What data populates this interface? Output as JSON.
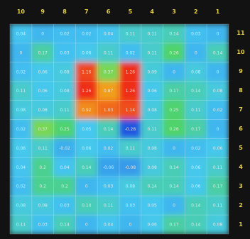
{
  "chart_data": {
    "type": "heatmap",
    "title": "",
    "xlabel": "",
    "ylabel": "",
    "x_labels": [
      "10",
      "9",
      "8",
      "7",
      "6",
      "5",
      "4",
      "3",
      "2",
      "1"
    ],
    "y_labels": [
      "11",
      "10",
      "9",
      "8",
      "7",
      "6",
      "5",
      "4",
      "3",
      "2",
      "1"
    ],
    "grid": true,
    "colormap": [
      "#1f4fe0",
      "#45c8f0",
      "#4fd36a",
      "#f2e21a",
      "#f08020",
      "#ee2218"
    ],
    "values": [
      [
        0.04,
        0,
        0.02,
        0.02,
        0.04,
        0.11,
        0.11,
        0.14,
        0.03,
        0
      ],
      [
        0,
        0.17,
        0.03,
        0.06,
        0.11,
        0.02,
        0.11,
        0.26,
        0,
        0.14
      ],
      [
        0.02,
        0.06,
        0.08,
        1.16,
        0.37,
        1.26,
        0.09,
        0,
        0.08,
        0
      ],
      [
        0.11,
        0.06,
        0.08,
        1.26,
        0.87,
        1.26,
        0.06,
        0.17,
        0.14,
        0.08
      ],
      [
        0.08,
        0.08,
        0.11,
        0.92,
        1.03,
        1.14,
        0.08,
        0.25,
        0.11,
        0.02
      ],
      [
        0.02,
        0.37,
        0.25,
        0.05,
        0.14,
        -0.28,
        0.11,
        0.26,
        0.17,
        0
      ],
      [
        0.06,
        0.11,
        -0.02,
        0.06,
        0.02,
        0.11,
        0.08,
        0,
        0.02,
        0.06
      ],
      [
        0.04,
        0.2,
        0.04,
        0.14,
        -0.06,
        -0.08,
        0.08,
        0.14,
        0.06,
        0.11
      ],
      [
        0.02,
        0.2,
        0.2,
        0,
        0.03,
        0.08,
        0.14,
        0.14,
        0.06,
        0.17
      ],
      [
        0.08,
        0.08,
        0.03,
        0.14,
        0.11,
        0.03,
        0.05,
        0,
        0.14,
        0.11
      ],
      [
        0.11,
        0.03,
        0.14,
        0,
        0.04,
        0,
        0.06,
        0.17,
        0.14,
        0.08
      ]
    ]
  }
}
